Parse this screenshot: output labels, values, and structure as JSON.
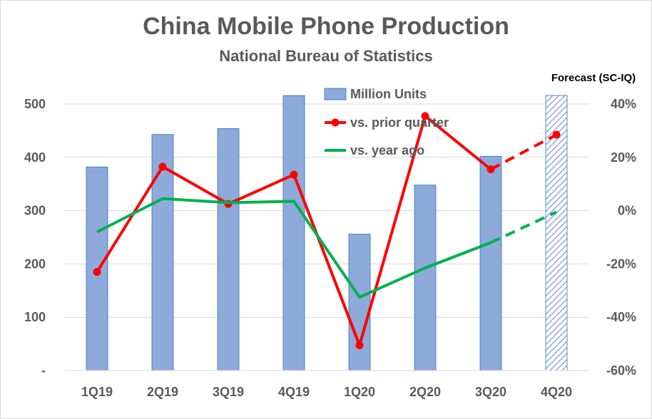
{
  "chart_data": {
    "type": "bar",
    "title": "China Mobile Phone Production",
    "subtitle": "National Bureau of Statistics",
    "categories": [
      "1Q19",
      "2Q19",
      "3Q19",
      "4Q19",
      "1Q20",
      "2Q20",
      "3Q20",
      "4Q20"
    ],
    "ylim_left": [
      0,
      500
    ],
    "yticks_left": [
      "-",
      "100",
      "200",
      "300",
      "400",
      "500"
    ],
    "ylim_right": [
      -60,
      40
    ],
    "yticks_right": [
      "-60%",
      "-40%",
      "-20%",
      "0%",
      "20%",
      "40%"
    ],
    "grid": "horizontal",
    "legend_position": "top-center",
    "annotation": "Forecast (SC-IQ)",
    "series": [
      {
        "name": "Million Units",
        "type": "bar",
        "axis": "left",
        "values": [
          382,
          443,
          454,
          516,
          256,
          348,
          402,
          516
        ],
        "forecast_from_index": 7,
        "color": "#8eaadb"
      },
      {
        "name": "vs. prior quarter",
        "type": "line",
        "axis": "right",
        "markers": true,
        "values": [
          -23,
          16.5,
          2.5,
          13.5,
          -50.5,
          35.5,
          15.5,
          28.5
        ],
        "forecast_from_index": 6,
        "color": "#ff0000"
      },
      {
        "name": "vs. year ago",
        "type": "line",
        "axis": "right",
        "markers": false,
        "values": [
          -8,
          4.5,
          3,
          3.5,
          -32.5,
          -21.5,
          -12,
          -0.5
        ],
        "forecast_from_index": 6,
        "color": "#00b050"
      }
    ]
  }
}
